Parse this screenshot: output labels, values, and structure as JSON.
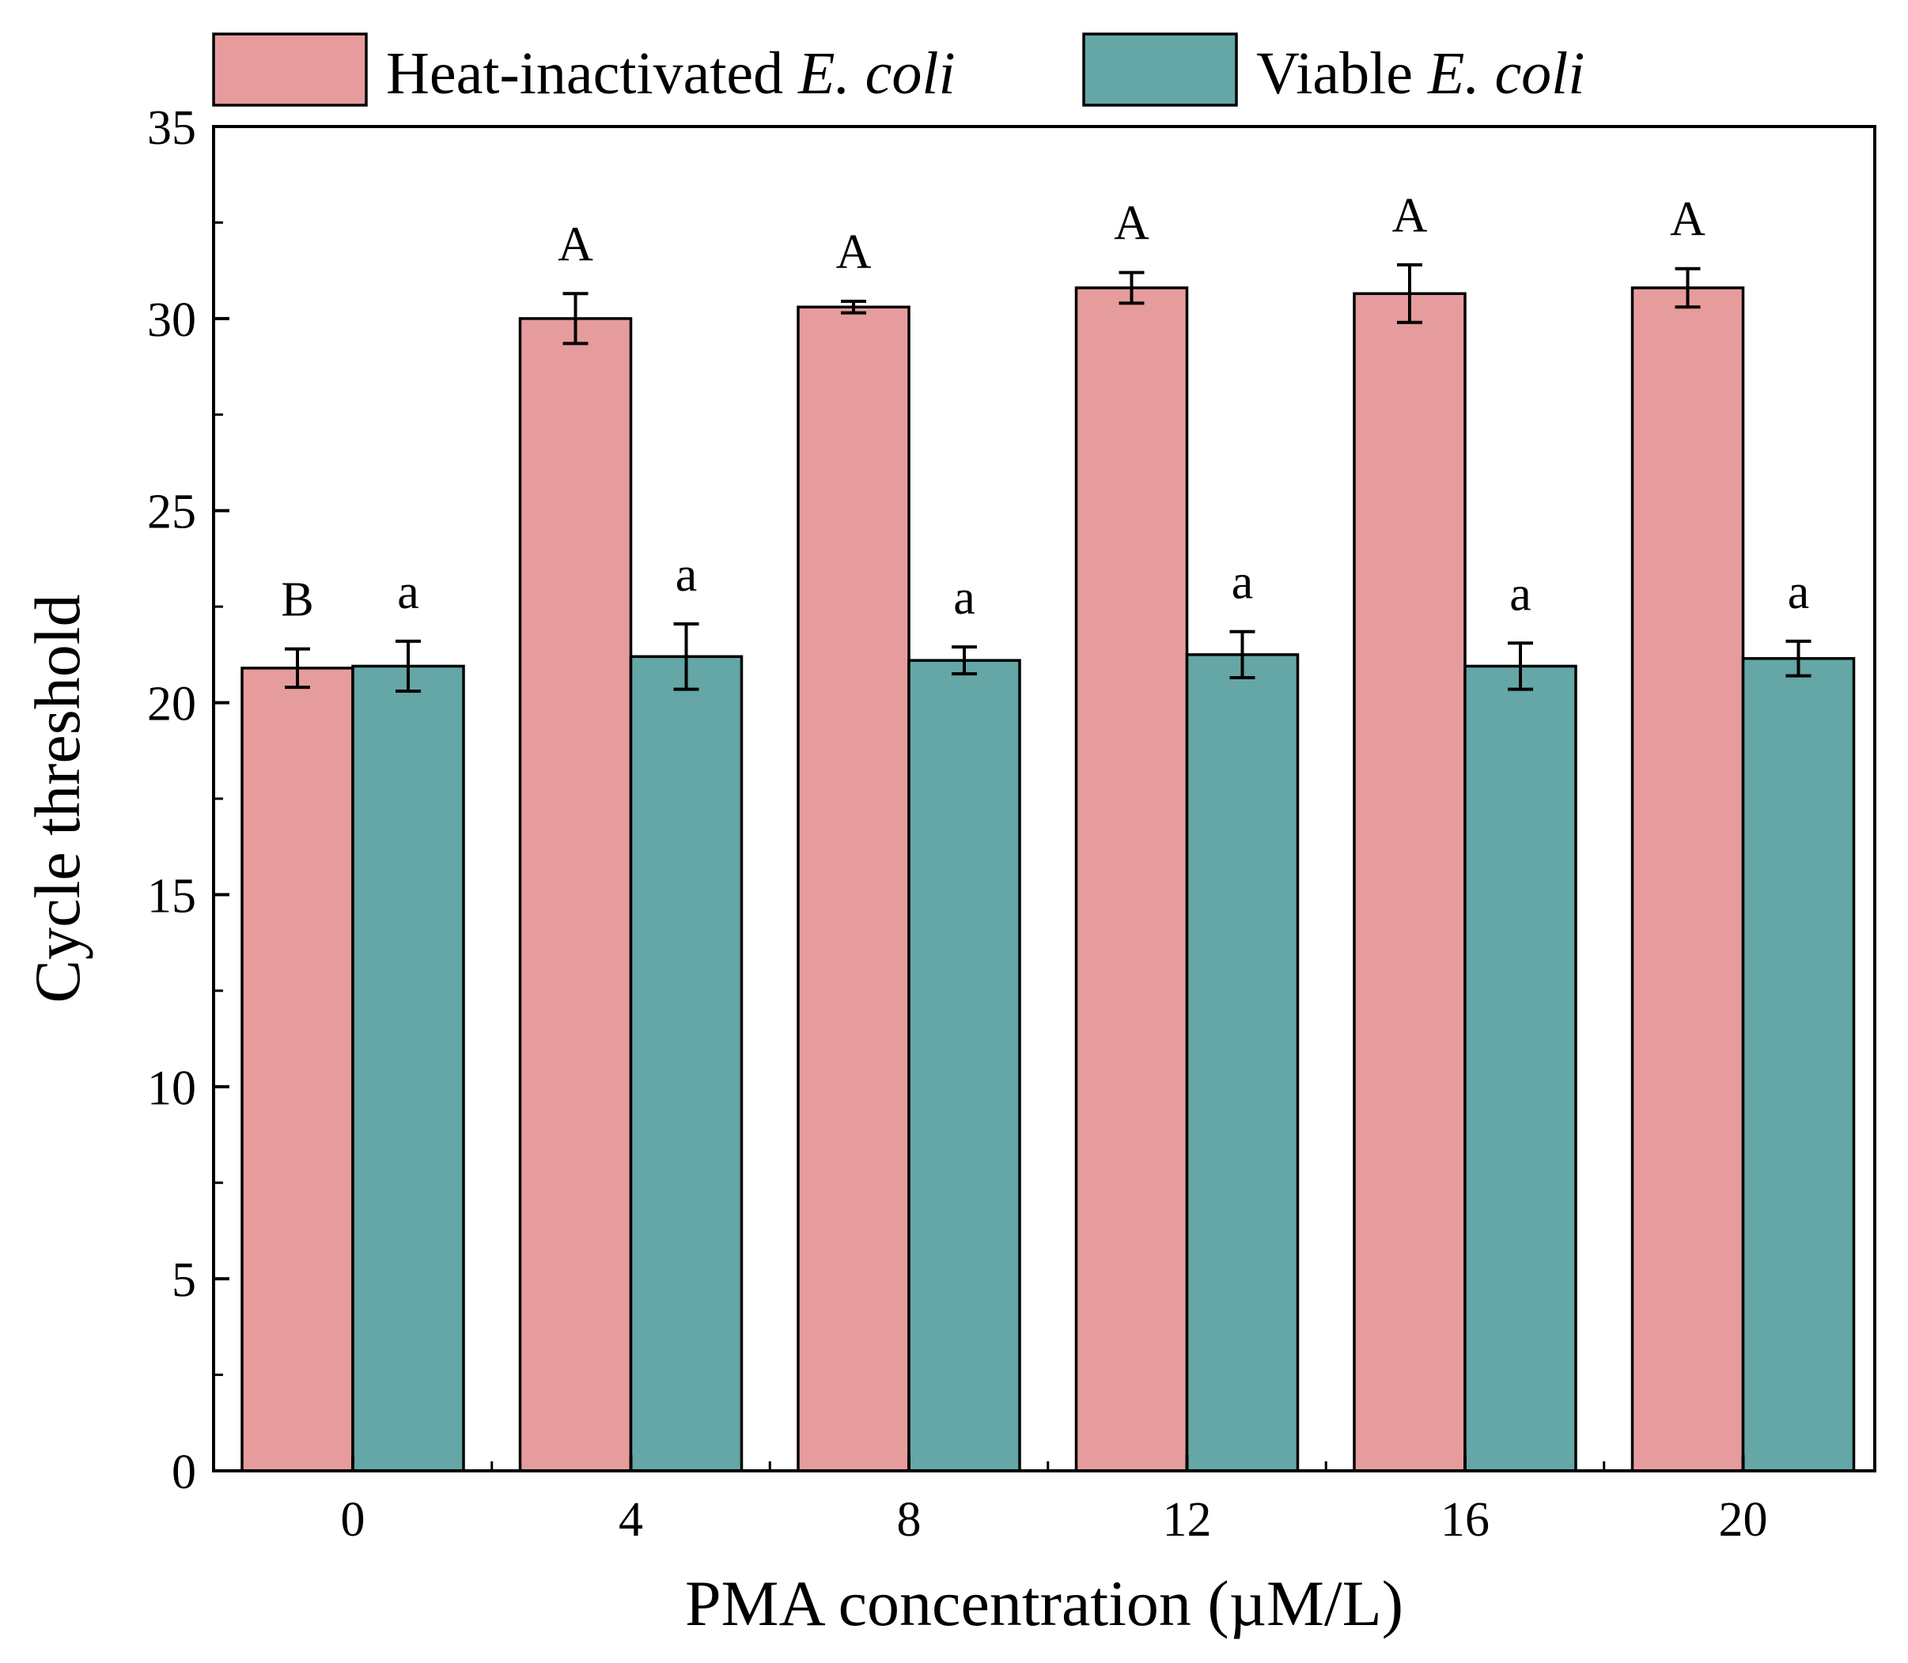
{
  "chart_data": {
    "type": "bar",
    "xlabel": "PMA concentration (µM/L)",
    "ylabel": "Cycle threshold",
    "ylim": [
      0,
      35
    ],
    "yticks": [
      0,
      5,
      10,
      15,
      20,
      25,
      30,
      35
    ],
    "yminor_step": 2.5,
    "grid": false,
    "legend_position": "top",
    "categories": [
      "0",
      "4",
      "8",
      "12",
      "16",
      "20"
    ],
    "series": [
      {
        "name": "Heat-inactivated",
        "name_italic": "E. coli",
        "color": "#e69c9c",
        "values": [
          20.9,
          30.0,
          30.3,
          30.8,
          30.65,
          30.8
        ],
        "errors": [
          0.5,
          0.65,
          0.15,
          0.4,
          0.75,
          0.5
        ],
        "labels": [
          "B",
          "A",
          "A",
          "A",
          "A",
          "A"
        ]
      },
      {
        "name": "Viable",
        "name_italic": "E. coli",
        "color": "#65a6a6",
        "values": [
          20.95,
          21.2,
          21.1,
          21.25,
          20.95,
          21.15
        ],
        "errors": [
          0.65,
          0.85,
          0.35,
          0.6,
          0.6,
          0.45
        ],
        "labels": [
          "a",
          "a",
          "a",
          "a",
          "a",
          "a"
        ]
      }
    ]
  }
}
